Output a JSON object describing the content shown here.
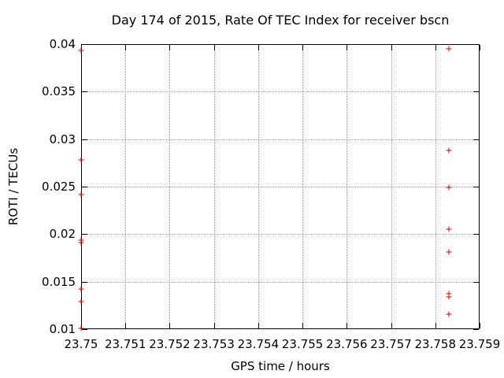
{
  "window": {
    "background": "#ffffff",
    "foreground": "#000000"
  },
  "chart_data": {
    "type": "scatter",
    "title": "Day 174 of 2015, Rate Of TEC Index for receiver bscn",
    "xlabel": "GPS time / hours",
    "ylabel": "ROTI / TECUs",
    "xlim": [
      23.75,
      23.759
    ],
    "ylim": [
      0.01,
      0.04
    ],
    "grid": true,
    "grid_color": "#999999",
    "legend": "none",
    "marker": {
      "shape": "plus",
      "color": "#e00000",
      "size": 7
    },
    "xticks": [
      {
        "v": 23.75,
        "label": "23.75"
      },
      {
        "v": 23.751,
        "label": "23.751"
      },
      {
        "v": 23.752,
        "label": "23.752"
      },
      {
        "v": 23.753,
        "label": "23.753"
      },
      {
        "v": 23.754,
        "label": "23.754"
      },
      {
        "v": 23.755,
        "label": "23.755"
      },
      {
        "v": 23.756,
        "label": "23.756"
      },
      {
        "v": 23.757,
        "label": "23.757"
      },
      {
        "v": 23.758,
        "label": "23.758"
      },
      {
        "v": 23.759,
        "label": "23.759"
      }
    ],
    "yticks": [
      {
        "v": 0.01,
        "label": "0.01"
      },
      {
        "v": 0.015,
        "label": "0.015"
      },
      {
        "v": 0.02,
        "label": "0.02"
      },
      {
        "v": 0.025,
        "label": "0.025"
      },
      {
        "v": 0.03,
        "label": "0.03"
      },
      {
        "v": 0.035,
        "label": "0.035"
      },
      {
        "v": 0.04,
        "label": "0.04"
      }
    ],
    "series": [
      {
        "name": "ROTI",
        "points": [
          [
            23.75,
            0.0393
          ],
          [
            23.75,
            0.0278
          ],
          [
            23.75,
            0.0242
          ],
          [
            23.75,
            0.0194
          ],
          [
            23.75,
            0.0191
          ],
          [
            23.75,
            0.0142
          ],
          [
            23.75,
            0.0129
          ],
          [
            23.75,
            0.0101
          ],
          [
            23.7583,
            0.0395
          ],
          [
            23.7583,
            0.0288
          ],
          [
            23.7583,
            0.0249
          ],
          [
            23.7583,
            0.0205
          ],
          [
            23.7583,
            0.0181
          ],
          [
            23.7583,
            0.0137
          ],
          [
            23.7583,
            0.0134
          ],
          [
            23.7583,
            0.0116
          ]
        ]
      }
    ]
  }
}
